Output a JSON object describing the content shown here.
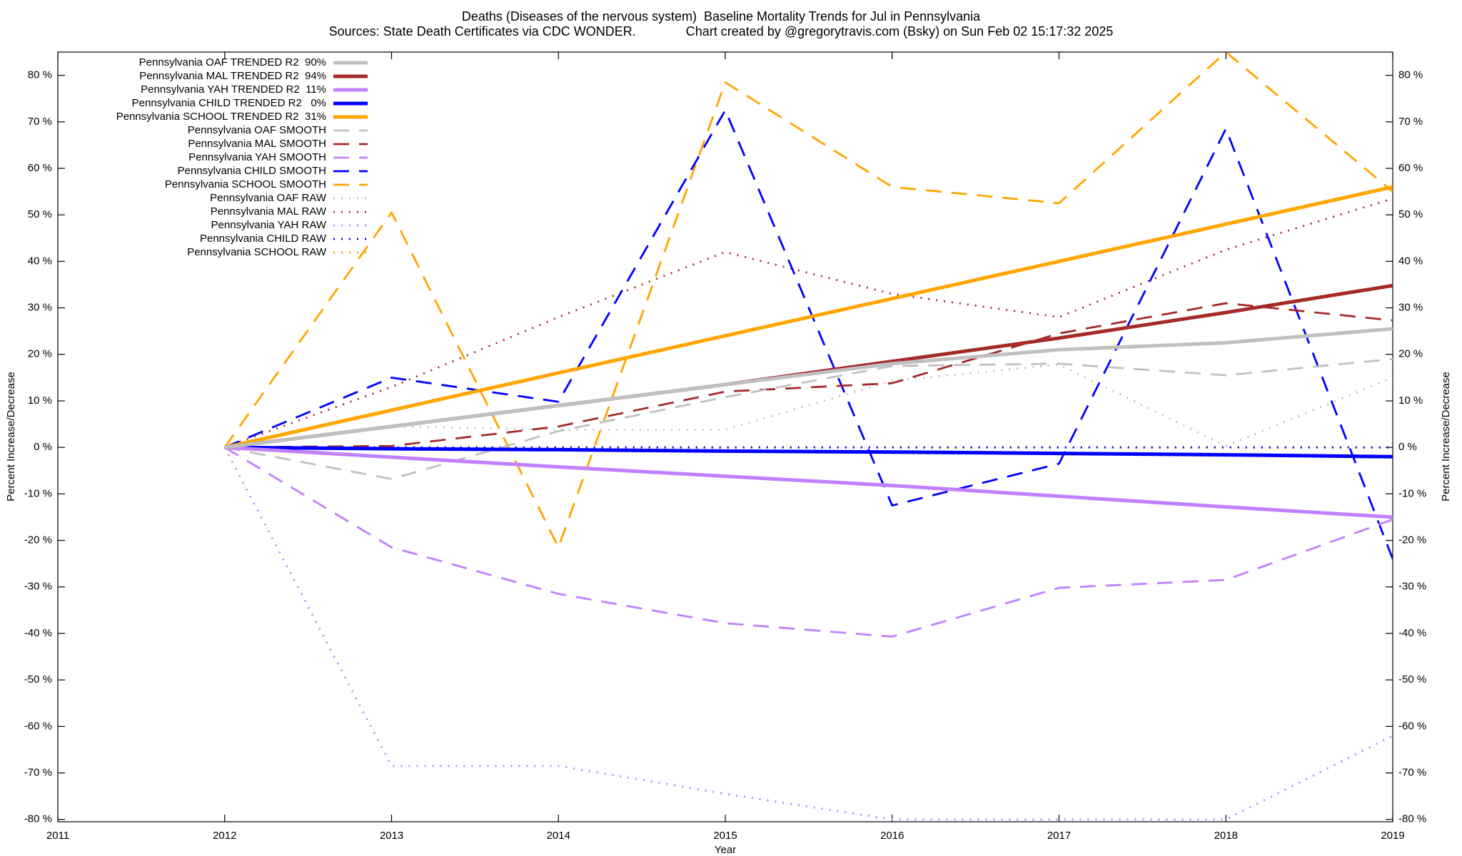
{
  "chart_data": {
    "type": "line",
    "title": "Deaths (Diseases of the nervous system)  Baseline Mortality Trends for Jul in Pennsylvania",
    "subtitle": "Sources: State Death Certificates via CDC WONDER.              Chart created by @gregorytravis.com (Bsky) on Sun Feb 02 15:17:32 2025",
    "xlabel": "Year",
    "ylabel": "Percent Increase/Decrease",
    "y2label": "Percent Increase/Decrease",
    "x": [
      2012,
      2013,
      2014,
      2015,
      2016,
      2017,
      2018,
      2019
    ],
    "xlim": [
      2011,
      2019
    ],
    "xticks": [
      2011,
      2012,
      2013,
      2014,
      2015,
      2016,
      2017,
      2018,
      2019
    ],
    "ylim": [
      -80.5,
      85
    ],
    "yticks": [
      {
        "value": -80,
        "label": "-80 %"
      },
      {
        "value": -70,
        "label": "-70 %"
      },
      {
        "value": -60,
        "label": "-60 %"
      },
      {
        "value": -50,
        "label": "-50 %"
      },
      {
        "value": -40,
        "label": "-40 %"
      },
      {
        "value": -30,
        "label": "-30 %"
      },
      {
        "value": -20,
        "label": "-20 %"
      },
      {
        "value": -10,
        "label": "-10 %"
      },
      {
        "value": 0,
        "label": "0 %"
      },
      {
        "value": 10,
        "label": "10 %"
      },
      {
        "value": 20,
        "label": "20 %"
      },
      {
        "value": 30,
        "label": "30 %"
      },
      {
        "value": 40,
        "label": "40 %"
      },
      {
        "value": 50,
        "label": "50 %"
      },
      {
        "value": 60,
        "label": "60 %"
      },
      {
        "value": 70,
        "label": "70 %"
      },
      {
        "value": 80,
        "label": "80 %"
      }
    ],
    "y2lim": [
      -80.5,
      85
    ],
    "y2ticks": [
      {
        "value": -80,
        "label": "-80 %"
      },
      {
        "value": -70,
        "label": "-70 %"
      },
      {
        "value": -60,
        "label": "-60 %"
      },
      {
        "value": -50,
        "label": "-50 %"
      },
      {
        "value": -40,
        "label": "-40 %"
      },
      {
        "value": -30,
        "label": "-30 %"
      },
      {
        "value": -20,
        "label": "-20 %"
      },
      {
        "value": -10,
        "label": "-10 %"
      },
      {
        "value": 0,
        "label": "0 %"
      },
      {
        "value": 10,
        "label": "10 %"
      },
      {
        "value": 20,
        "label": "20 %"
      },
      {
        "value": 30,
        "label": "30 %"
      },
      {
        "value": 40,
        "label": "40 %"
      },
      {
        "value": 50,
        "label": "50 %"
      },
      {
        "value": 60,
        "label": "60 %"
      },
      {
        "value": 70,
        "label": "70 %"
      },
      {
        "value": 80,
        "label": "80 %"
      }
    ],
    "grid": false,
    "legend": "top-left",
    "series": [
      {
        "name": "Pennsylvania OAF TRENDED R2  90%",
        "color": "#c0c0c0",
        "style": "solid",
        "values": [
          0,
          4.5,
          9,
          13.5,
          18,
          21,
          22.5,
          25.5
        ]
      },
      {
        "name": "Pennsylvania MAL TRENDED R2  94%",
        "color": "#a52a2a",
        "style": "solid",
        "values": [
          0,
          4.5,
          9,
          13.5,
          18.5,
          23.5,
          29,
          34.8
        ]
      },
      {
        "name": "Pennsylvania YAH TRENDED R2  11%",
        "color": "#c080ff",
        "style": "solid",
        "values": [
          0,
          -2.1,
          -4.2,
          -6.2,
          -8.2,
          -10.5,
          -12.8,
          -15
        ]
      },
      {
        "name": "Pennsylvania CHILD TRENDED R2   0%",
        "color": "#0000ff",
        "style": "solid",
        "values": [
          0,
          -0.3,
          -0.5,
          -0.8,
          -1,
          -1.3,
          -1.6,
          -2
        ]
      },
      {
        "name": "Pennsylvania SCHOOL TRENDED R2  31%",
        "color": "#ffa500",
        "style": "solid",
        "values": [
          0,
          8,
          16,
          24,
          32,
          40,
          48,
          56
        ]
      },
      {
        "name": "Pennsylvania OAF SMOOTH",
        "color": "#c0c0c0",
        "style": "dashed",
        "values": [
          0,
          -6.8,
          3.5,
          10.8,
          17.5,
          18,
          15.5,
          19
        ]
      },
      {
        "name": "Pennsylvania MAL SMOOTH",
        "color": "#a52a2a",
        "style": "dashed",
        "values": [
          0,
          0.3,
          4.5,
          12,
          13.8,
          24.5,
          31,
          27.3
        ]
      },
      {
        "name": "Pennsylvania YAH SMOOTH",
        "color": "#c080ff",
        "style": "dashed",
        "values": [
          0,
          -21.5,
          -31.5,
          -37.8,
          -40.7,
          -30.2,
          -28.5,
          -15.5
        ]
      },
      {
        "name": "Pennsylvania CHILD SMOOTH",
        "color": "#0000ff",
        "style": "dashed",
        "values": [
          0,
          15,
          9.8,
          72.5,
          -12.5,
          -3.5,
          68.5,
          -24
        ]
      },
      {
        "name": "Pennsylvania SCHOOL SMOOTH",
        "color": "#ffa500",
        "style": "dashed",
        "values": [
          0,
          50.5,
          -21.5,
          78.5,
          56,
          52.5,
          85,
          55
        ]
      },
      {
        "name": "Pennsylvania OAF RAW",
        "color": "#c0c0c0",
        "style": "dotted",
        "values": [
          0,
          4.5,
          3.8,
          3.8,
          14.3,
          17.8,
          0.3,
          15
        ]
      },
      {
        "name": "Pennsylvania MAL RAW",
        "color": "#a52a2a",
        "style": "dotted",
        "values": [
          0,
          13,
          28,
          42,
          33,
          28,
          42.5,
          53.5
        ]
      },
      {
        "name": "Pennsylvania YAH RAW",
        "color": "#c080ff",
        "style": "dotted",
        "values": [
          0,
          -68.5,
          -68.5,
          -74.5,
          -80,
          -80,
          -80,
          -62
        ]
      },
      {
        "name": "Pennsylvania CHILD RAW",
        "color": "#0000ff",
        "style": "dotted",
        "values": [
          0,
          0,
          0,
          0,
          0,
          0,
          0,
          0
        ]
      },
      {
        "name": "Pennsylvania SCHOOL RAW",
        "color": "#ffa500",
        "style": "dotted",
        "values": [
          0,
          0,
          0,
          0,
          0,
          0,
          0,
          0
        ]
      }
    ]
  }
}
